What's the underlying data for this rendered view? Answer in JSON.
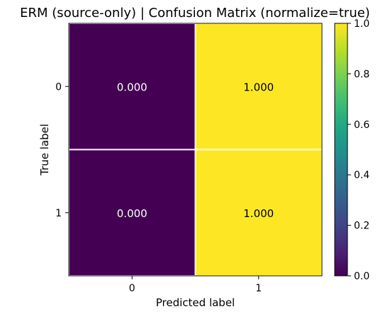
{
  "chart_data": {
    "type": "heatmap",
    "title": "ERM (source-only) | Confusion Matrix (normalize=true)",
    "xlabel": "Predicted label",
    "ylabel": "True label",
    "x_categories": [
      "0",
      "1"
    ],
    "y_categories": [
      "0",
      "1"
    ],
    "values": [
      [
        0.0,
        1.0
      ],
      [
        0.0,
        1.0
      ]
    ],
    "cell_labels": [
      [
        "0.000",
        "1.000"
      ],
      [
        "0.000",
        "1.000"
      ]
    ],
    "colormap": "viridis",
    "vmin": 0.0,
    "vmax": 1.0,
    "colorbar_ticks": [
      "0.0",
      "0.2",
      "0.4",
      "0.6",
      "0.8",
      "1.0"
    ],
    "colors": {
      "low": "#440154",
      "high": "#fde725",
      "cell_border": "#ffffff"
    }
  }
}
